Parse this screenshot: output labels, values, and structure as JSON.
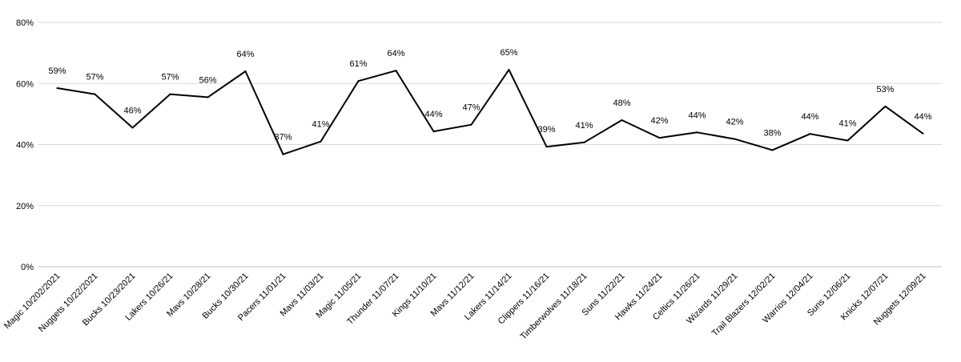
{
  "chart_data": {
    "type": "line",
    "title": "",
    "xlabel": "",
    "ylabel": "",
    "ylim": [
      0,
      0.8
    ],
    "yticks": [
      0,
      0.2,
      0.4,
      0.6,
      0.8
    ],
    "ytick_labels": [
      "0%",
      "20%",
      "40%",
      "60%",
      "80%"
    ],
    "grid": true,
    "legend": "none",
    "line_color": "#000000",
    "categories": [
      "Magic 10/202/2021",
      "Nuggets 10/22/2021",
      "Bucks 10/23/2021",
      "Lakers 10/26/21",
      "Mavs 10/28/21",
      "Bucks 10/30/21",
      "Pacers 11/01/21",
      "Mavs 11/03/21",
      "Magic 11/05/21",
      "Thunder 11/07/21",
      "Kings 11/10/21",
      "Mavs 11/12/21",
      "Lakers 11/14/21",
      "Clippers 11/16/21",
      "Timberwolves 11/18/21",
      "Suns 11/22/21",
      "Hawks 11/24/21",
      "Celtics 11/26/21",
      "Wizards 11/29/21",
      "Trail Blazers 12/02/21",
      "Warrios 12/04/21",
      "Suns 12/06/21",
      "Knicks 12/07/21",
      "Nuggets 12/09/21"
    ],
    "values": [
      0.585,
      0.565,
      0.455,
      0.565,
      0.555,
      0.64,
      0.368,
      0.41,
      0.608,
      0.642,
      0.443,
      0.465,
      0.645,
      0.393,
      0.407,
      0.48,
      0.422,
      0.44,
      0.418,
      0.382,
      0.435,
      0.413,
      0.525,
      0.436
    ],
    "data_labels": [
      "59%",
      "57%",
      "46%",
      "57%",
      "56%",
      "64%",
      "37%",
      "41%",
      "61%",
      "64%",
      "44%",
      "47%",
      "65%",
      "39%",
      "41%",
      "48%",
      "42%",
      "44%",
      "42%",
      "38%",
      "44%",
      "41%",
      "53%",
      "44%"
    ]
  }
}
